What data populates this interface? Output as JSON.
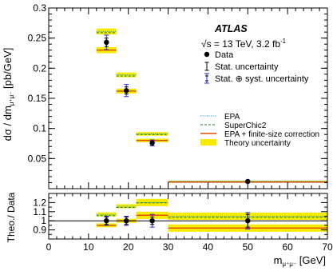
{
  "chart_data": {
    "type": "scatter",
    "experiment": "ATLAS",
    "energy_label": "√s = 13 TeV, 3.2 fb",
    "lumi_superscript": "-1",
    "xlabel_main": "m",
    "xlabel_sub": "μ⁺μ⁻",
    "xlabel_unit": "[GeV]",
    "ylabel_main": "dσ / dm",
    "ylabel_sub": "μ⁺μ⁻",
    "ylabel_unit": "[pb/GeV]",
    "ratio_ylabel": "Theo./ Data",
    "xlim": [
      0,
      70
    ],
    "ylim": [
      0,
      0.3
    ],
    "ratio_ylim": [
      0.8,
      1.3
    ],
    "x_ticks": [
      "0",
      "10",
      "20",
      "30",
      "40",
      "50",
      "60",
      "70"
    ],
    "y_ticks": [
      "0.05",
      "0.1",
      "0.15",
      "0.2",
      "0.25",
      "0.3"
    ],
    "ratio_y_ticks": [
      "0.9",
      "1",
      "1.1",
      "1.2"
    ],
    "bins": [
      [
        12,
        17
      ],
      [
        17,
        22
      ],
      [
        22,
        30
      ],
      [
        30,
        70
      ]
    ],
    "data": {
      "x": [
        14.5,
        19.5,
        26,
        50
      ],
      "y": [
        0.243,
        0.163,
        0.076,
        0.012
      ],
      "stat_err": [
        0.007,
        0.006,
        0.003,
        0.0008
      ],
      "total_err": [
        0.012,
        0.01,
        0.005,
        0.0015
      ]
    },
    "theory": {
      "epa": [
        0.261,
        0.189,
        0.091,
        0.0125
      ],
      "superchic2": [
        0.261,
        0.189,
        0.092,
        0.0125
      ],
      "epa_fs": [
        0.23,
        0.162,
        0.08,
        0.011
      ],
      "band_halfwidth": [
        0.005,
        0.004,
        0.003,
        0.0008
      ]
    },
    "ratio": {
      "data_err_stat": [
        0.04,
        0.04,
        0.04,
        0.07
      ],
      "data_err_total": [
        0.05,
        0.05,
        0.07,
        0.09
      ],
      "epa": [
        1.07,
        1.16,
        1.2,
        1.05
      ],
      "superchic2": [
        1.07,
        1.16,
        1.21,
        1.05
      ],
      "epa_fs": [
        0.95,
        1.0,
        1.06,
        0.92
      ],
      "band_halfwidth": [
        0.022,
        0.022,
        0.04,
        0.04
      ]
    },
    "legend": [
      {
        "label": "Data",
        "style": "marker"
      },
      {
        "label": "Stat. uncertainty",
        "style": "stat"
      },
      {
        "label": "Stat. ⊕ syst. uncertainty",
        "style": "syst"
      },
      {
        "label": "EPA",
        "style": "epa"
      },
      {
        "label": "SuperChic2",
        "style": "sc2"
      },
      {
        "label": "EPA + finite-size correction",
        "style": "fs"
      },
      {
        "label": "Theory uncertainty",
        "style": "band"
      }
    ],
    "colors": {
      "data": "#000000",
      "syst": "#2a2acc",
      "epa": "#1aa0c8",
      "superchic2": "#1f7a1f",
      "epa_fs": "#e04a00",
      "band": "#f6ea00"
    }
  }
}
